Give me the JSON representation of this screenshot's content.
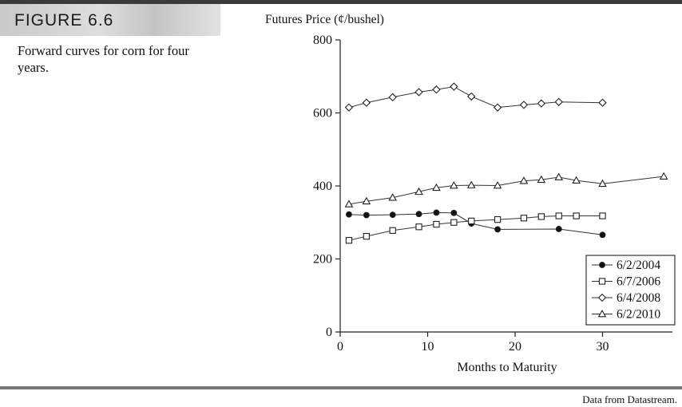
{
  "figure": {
    "label": "FIGURE 6.6",
    "caption": "Forward curves for corn for four years.",
    "source": "Data from Datastream."
  },
  "chart_data": {
    "type": "line",
    "title": "",
    "xlabel": "Months to Maturity",
    "ylabel": "Futures Price (¢/bushel)",
    "xlim": [
      0,
      38
    ],
    "ylim": [
      0,
      800
    ],
    "xticks": [
      0,
      10,
      20,
      30
    ],
    "yticks": [
      0,
      200,
      400,
      600,
      800
    ],
    "grid": false,
    "legend_position": "bottom-right",
    "series": [
      {
        "name": "6/2/2004",
        "marker": "filled-circle",
        "points": [
          [
            1,
            322
          ],
          [
            3,
            320
          ],
          [
            6,
            321
          ],
          [
            9,
            323
          ],
          [
            11,
            327
          ],
          [
            13,
            326
          ],
          [
            15,
            297
          ],
          [
            18,
            281
          ],
          [
            25,
            282
          ],
          [
            30,
            266
          ]
        ]
      },
      {
        "name": "6/7/2006",
        "marker": "open-square",
        "points": [
          [
            1,
            251
          ],
          [
            3,
            262
          ],
          [
            6,
            278
          ],
          [
            9,
            288
          ],
          [
            11,
            295
          ],
          [
            13,
            300
          ],
          [
            15,
            304
          ],
          [
            18,
            308
          ],
          [
            21,
            312
          ],
          [
            23,
            316
          ],
          [
            25,
            318
          ],
          [
            27,
            318
          ],
          [
            30,
            318
          ]
        ]
      },
      {
        "name": "6/4/2008",
        "marker": "open-diamond",
        "points": [
          [
            1,
            615
          ],
          [
            3,
            628
          ],
          [
            6,
            643
          ],
          [
            9,
            657
          ],
          [
            11,
            664
          ],
          [
            13,
            672
          ],
          [
            15,
            645
          ],
          [
            18,
            615
          ],
          [
            21,
            622
          ],
          [
            23,
            626
          ],
          [
            25,
            630
          ],
          [
            30,
            628
          ]
        ]
      },
      {
        "name": "6/2/2010",
        "marker": "open-triangle",
        "points": [
          [
            1,
            350
          ],
          [
            3,
            358
          ],
          [
            6,
            368
          ],
          [
            9,
            384
          ],
          [
            11,
            395
          ],
          [
            13,
            401
          ],
          [
            15,
            402
          ],
          [
            18,
            401
          ],
          [
            21,
            414
          ],
          [
            23,
            417
          ],
          [
            25,
            424
          ],
          [
            27,
            415
          ],
          [
            30,
            406
          ],
          [
            37,
            426
          ]
        ]
      }
    ]
  }
}
